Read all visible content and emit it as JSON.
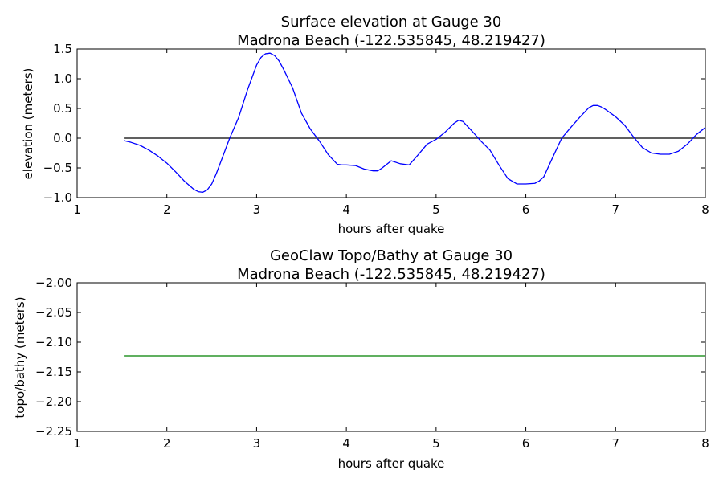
{
  "chart_data": [
    {
      "type": "line",
      "title": "Surface elevation at Gauge 30",
      "subtitle": "Madrona Beach  (-122.535845, 48.219427)",
      "xlabel": "hours after quake",
      "ylabel": "elevation (meters)",
      "xlim": [
        1,
        8
      ],
      "ylim": [
        -1.0,
        1.5
      ],
      "xticks": [
        1,
        2,
        3,
        4,
        5,
        6,
        7,
        8
      ],
      "yticks": [
        -1.0,
        -0.5,
        0.0,
        0.5,
        1.0,
        1.5
      ],
      "xtick_labels": [
        "1",
        "2",
        "3",
        "4",
        "5",
        "6",
        "7",
        "8"
      ],
      "ytick_labels": [
        "−1.0",
        "−0.5",
        "0.0",
        "0.5",
        "1.0",
        "1.5"
      ],
      "grid": false,
      "reference_line": {
        "y": 0.0,
        "x": [
          1.52,
          8.0
        ],
        "color": "#000000"
      },
      "series": [
        {
          "color": "#0000ff",
          "x": [
            1.52,
            1.6,
            1.7,
            1.8,
            1.9,
            2.0,
            2.1,
            2.2,
            2.3,
            2.35,
            2.4,
            2.45,
            2.5,
            2.55,
            2.6,
            2.7,
            2.8,
            2.9,
            3.0,
            3.05,
            3.1,
            3.15,
            3.2,
            3.25,
            3.3,
            3.4,
            3.5,
            3.6,
            3.7,
            3.8,
            3.9,
            3.95,
            4.0,
            4.1,
            4.2,
            4.3,
            4.35,
            4.4,
            4.5,
            4.6,
            4.7,
            4.8,
            4.9,
            5.0,
            5.1,
            5.2,
            5.25,
            5.3,
            5.4,
            5.5,
            5.6,
            5.7,
            5.8,
            5.9,
            6.0,
            6.1,
            6.15,
            6.2,
            6.3,
            6.4,
            6.5,
            6.6,
            6.7,
            6.75,
            6.8,
            6.85,
            6.9,
            7.0,
            7.1,
            7.2,
            7.3,
            7.4,
            7.5,
            7.6,
            7.7,
            7.8,
            7.9,
            8.0
          ],
          "y": [
            -0.04,
            -0.07,
            -0.12,
            -0.2,
            -0.3,
            -0.42,
            -0.57,
            -0.73,
            -0.86,
            -0.9,
            -0.91,
            -0.87,
            -0.77,
            -0.6,
            -0.4,
            0.0,
            0.35,
            0.82,
            1.23,
            1.36,
            1.42,
            1.43,
            1.39,
            1.3,
            1.16,
            0.85,
            0.42,
            0.15,
            -0.05,
            -0.28,
            -0.44,
            -0.45,
            -0.45,
            -0.46,
            -0.52,
            -0.55,
            -0.55,
            -0.5,
            -0.38,
            -0.43,
            -0.45,
            -0.28,
            -0.1,
            -0.02,
            0.1,
            0.25,
            0.3,
            0.28,
            0.12,
            -0.05,
            -0.2,
            -0.45,
            -0.68,
            -0.77,
            -0.77,
            -0.76,
            -0.72,
            -0.65,
            -0.32,
            0.0,
            0.18,
            0.35,
            0.51,
            0.55,
            0.55,
            0.52,
            0.47,
            0.36,
            0.22,
            0.02,
            -0.16,
            -0.25,
            -0.27,
            -0.27,
            -0.22,
            -0.1,
            0.06,
            0.18
          ]
        }
      ]
    },
    {
      "type": "line",
      "title": "GeoClaw Topo/Bathy at Gauge 30",
      "subtitle": "Madrona Beach  (-122.535845, 48.219427)",
      "xlabel": "hours after quake",
      "ylabel": "topo/bathy (meters)",
      "xlim": [
        1,
        8
      ],
      "ylim": [
        -2.25,
        -2.0
      ],
      "xticks": [
        1,
        2,
        3,
        4,
        5,
        6,
        7,
        8
      ],
      "yticks": [
        -2.25,
        -2.2,
        -2.15,
        -2.1,
        -2.05,
        -2.0
      ],
      "xtick_labels": [
        "1",
        "2",
        "3",
        "4",
        "5",
        "6",
        "7",
        "8"
      ],
      "ytick_labels": [
        "−2.25",
        "−2.20",
        "−2.15",
        "−2.10",
        "−2.05",
        "−2.00"
      ],
      "grid": false,
      "series": [
        {
          "color": "#008000",
          "x": [
            1.52,
            8.0
          ],
          "y": [
            -2.123,
            -2.123
          ]
        }
      ]
    }
  ]
}
